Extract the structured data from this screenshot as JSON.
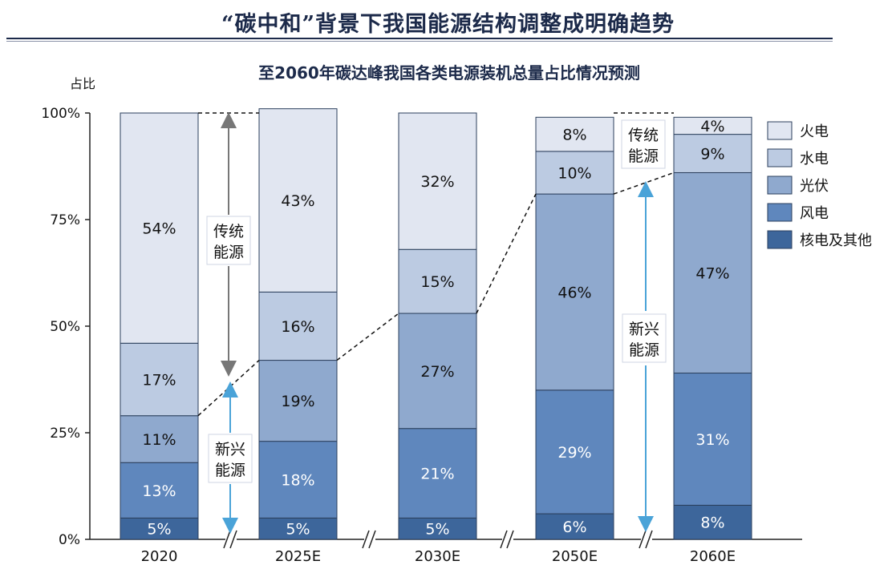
{
  "page": {
    "title": "“碳中和”背景下我国能源结构调整成明确趋势"
  },
  "chart_data": {
    "type": "bar",
    "stacked": true,
    "title": "至2060年碳达峰我国各类电源装机总量占比情况预测",
    "ylabel": "占比",
    "xlabel": "",
    "ylim": [
      0,
      100
    ],
    "y_ticks": [
      "0%",
      "25%",
      "50%",
      "75%",
      "100%"
    ],
    "categories": [
      "2020",
      "2025E",
      "2030E",
      "2050E",
      "2060E"
    ],
    "series": [
      {
        "name": "核电及其他",
        "color": "#3d669b",
        "values": [
          5,
          5,
          5,
          6,
          8
        ]
      },
      {
        "name": "风电",
        "color": "#5f87bd",
        "values": [
          13,
          18,
          21,
          29,
          31
        ]
      },
      {
        "name": "光伏",
        "color": "#8fa9ce",
        "values": [
          11,
          19,
          27,
          46,
          47
        ]
      },
      {
        "name": "水电",
        "color": "#bccbe2",
        "values": [
          17,
          16,
          15,
          10,
          9
        ]
      },
      {
        "name": "火电",
        "color": "#e1e6f1",
        "values": [
          54,
          43,
          32,
          8,
          4
        ]
      }
    ],
    "data_labels": [
      [
        "5%",
        "5%",
        "5%",
        "6%",
        "8%"
      ],
      [
        "13%",
        "18%",
        "21%",
        "29%",
        "31%"
      ],
      [
        "11%",
        "19%",
        "27%",
        "46%",
        "47%"
      ],
      [
        "17%",
        "16%",
        "15%",
        "10%",
        "9%"
      ],
      [
        "54%",
        "43%",
        "32%",
        "8%",
        "4%"
      ]
    ],
    "legend_position": "right",
    "legend_order": [
      "火电",
      "水电",
      "光伏",
      "风电",
      "核电及其他"
    ],
    "annotations": [
      {
        "text_line1": "传统",
        "text_line2": "能源",
        "between": "2020-2025E",
        "zone": "upper"
      },
      {
        "text_line1": "新兴",
        "text_line2": "能源",
        "between": "2020-2025E",
        "zone": "lower"
      },
      {
        "text_line1": "传统",
        "text_line2": "能源",
        "between": "2050E-2060E",
        "zone": "upper"
      },
      {
        "text_line1": "新兴",
        "text_line2": "能源",
        "between": "2050E-2060E",
        "zone": "lower"
      }
    ],
    "axis_break": true,
    "grid": false
  }
}
